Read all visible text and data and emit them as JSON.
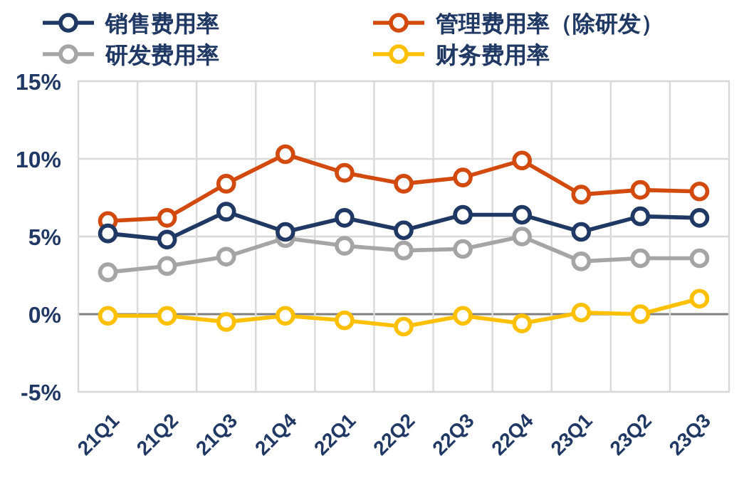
{
  "chart_data": {
    "type": "line",
    "categories": [
      "21Q1",
      "21Q2",
      "21Q3",
      "21Q4",
      "22Q1",
      "22Q2",
      "22Q3",
      "22Q4",
      "23Q1",
      "23Q2",
      "23Q3"
    ],
    "series": [
      {
        "name": "销售费用率",
        "color": "#1f3864",
        "values": [
          5.2,
          4.8,
          6.6,
          5.3,
          6.2,
          5.4,
          6.4,
          6.4,
          5.3,
          6.3,
          6.2
        ]
      },
      {
        "name": "管理费用率（除研发）",
        "color": "#d24a0e",
        "values": [
          6.0,
          6.2,
          8.4,
          10.3,
          9.1,
          8.4,
          8.8,
          9.9,
          7.7,
          8.0,
          7.9
        ]
      },
      {
        "name": "研发费用率",
        "color": "#a5a5a5",
        "values": [
          2.7,
          3.1,
          3.7,
          4.9,
          4.4,
          4.1,
          4.2,
          5.0,
          3.4,
          3.6,
          3.6
        ]
      },
      {
        "name": "财务费用率",
        "color": "#ffc000",
        "values": [
          -0.1,
          -0.1,
          -0.5,
          -0.1,
          -0.4,
          -0.8,
          -0.1,
          -0.6,
          0.1,
          0.0,
          1.0
        ]
      }
    ],
    "ylim": [
      -5,
      15
    ],
    "yticks": [
      {
        "value": -5,
        "label": "-5%"
      },
      {
        "value": 0,
        "label": "0%"
      },
      {
        "value": 5,
        "label": "5%"
      },
      {
        "value": 10,
        "label": "10%"
      },
      {
        "value": 15,
        "label": "15%"
      }
    ],
    "grid": true,
    "legend": "top",
    "marker": "circle",
    "line_style": "solid"
  }
}
